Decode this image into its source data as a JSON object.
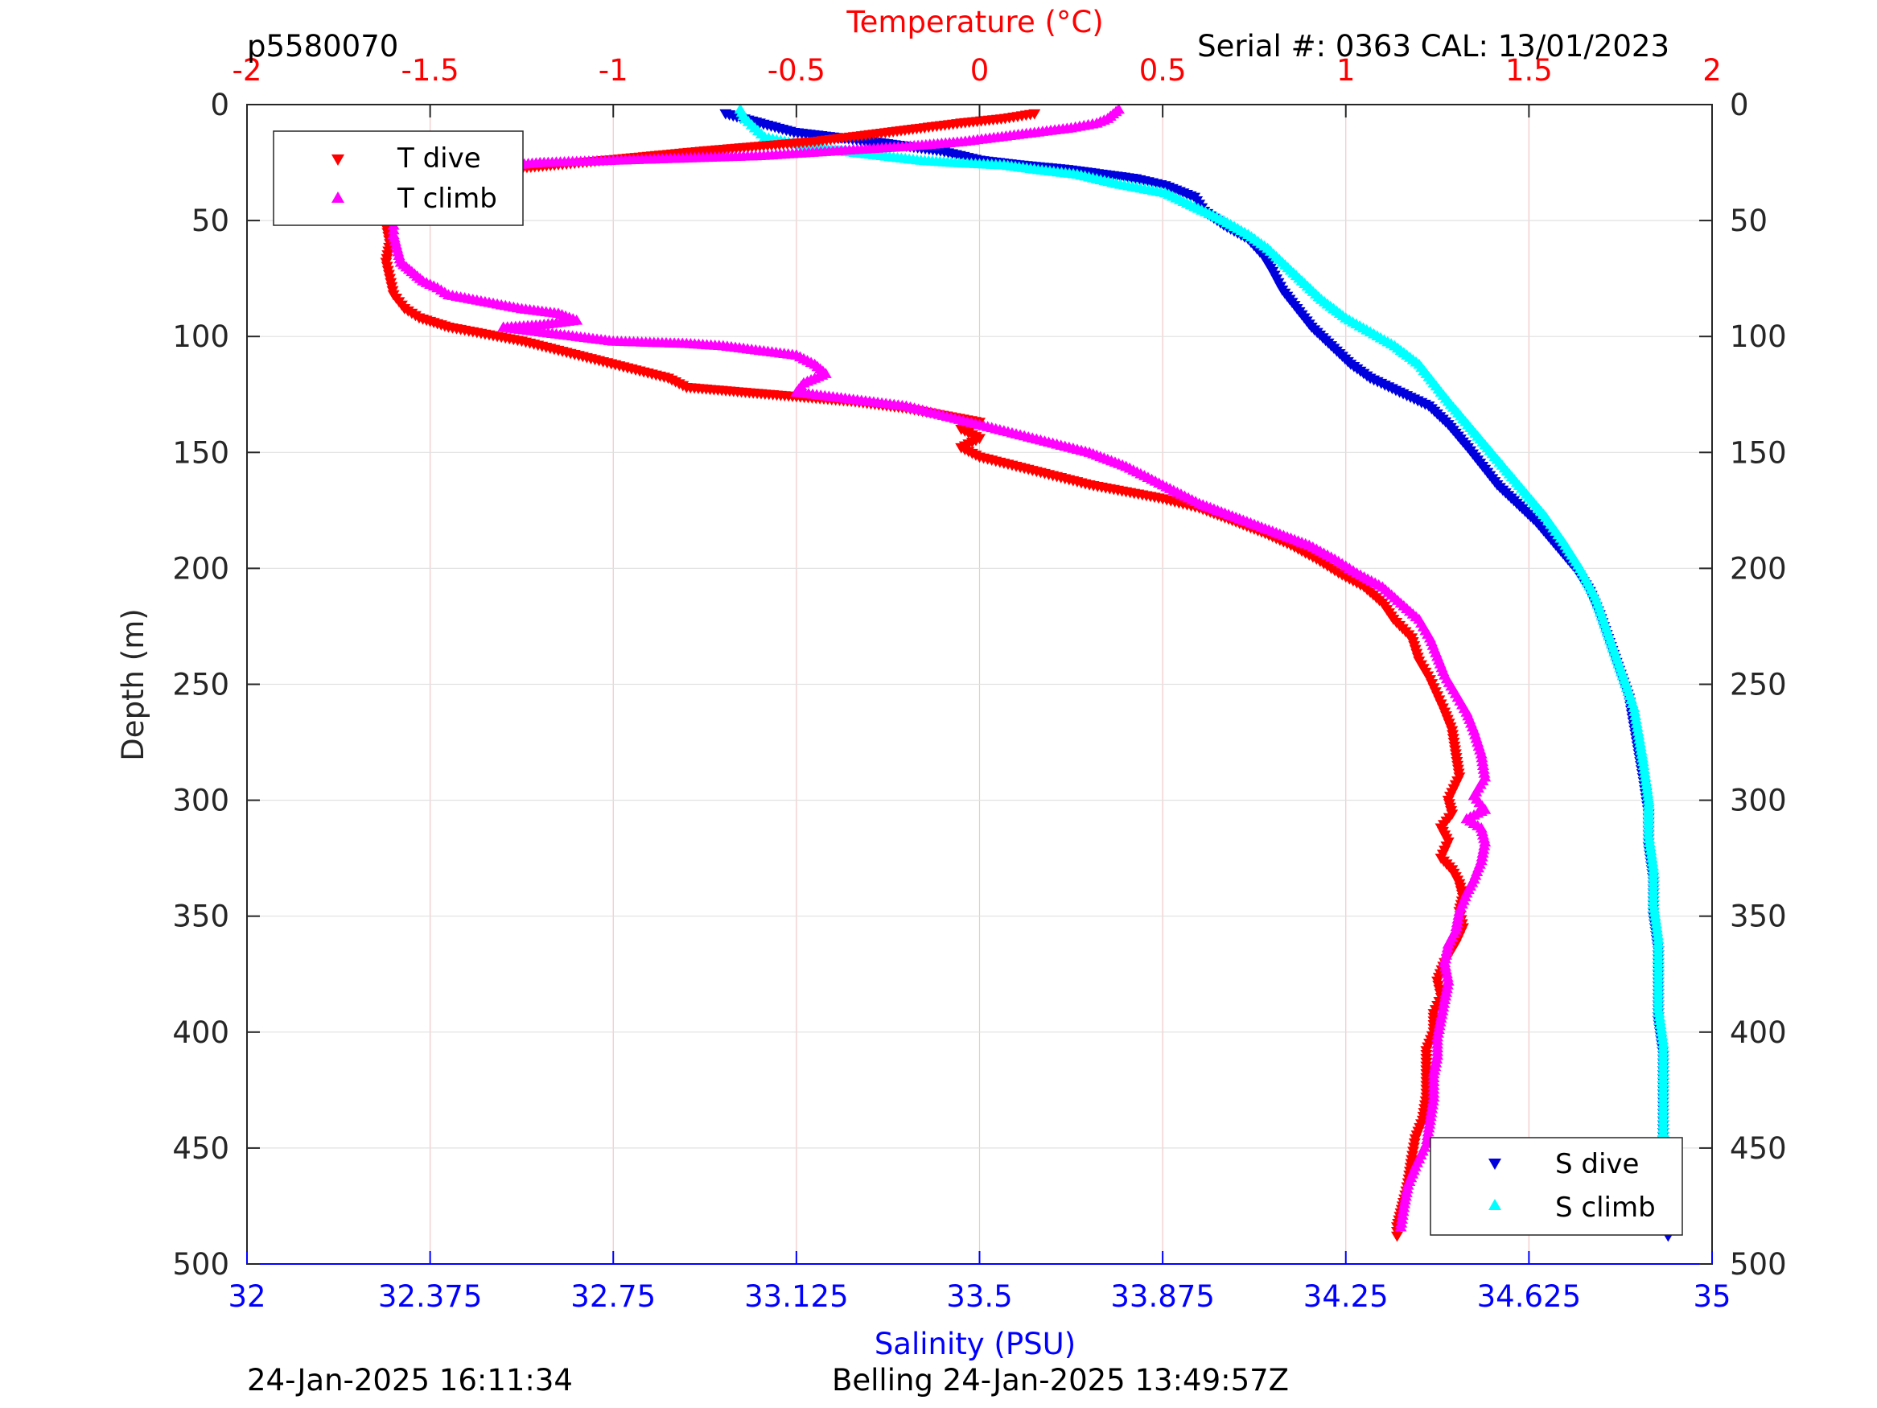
{
  "header": {
    "profile_id": "p5580070",
    "serial_cal": "Serial #: 0363  CAL: 13/01/2023"
  },
  "footer": {
    "left_timestamp": "24-Jan-2025 16:11:34",
    "right_text": "Belling 24-Jan-2025 13:49:57Z"
  },
  "colors": {
    "t_dive": "#ff0000",
    "t_climb": "#ff00ff",
    "s_dive": "#0000dd",
    "s_climb": "#00ffff",
    "temp_axis": "#ff0000",
    "sal_axis": "#0000ff",
    "axis": "#262626"
  },
  "chart_data": {
    "type": "scatter",
    "ylabel": "Depth (m)",
    "ylim": [
      0,
      500
    ],
    "y_reversed": true,
    "y_ticks": [
      "0",
      "50",
      "100",
      "150",
      "200",
      "250",
      "300",
      "350",
      "400",
      "450",
      "500"
    ],
    "temp_axis": {
      "label": "Temperature (°C)",
      "position": "top",
      "lim": [
        -2,
        2
      ],
      "ticks": [
        "-2",
        "-1.5",
        "-1",
        "-0.5",
        "0",
        "0.5",
        "1",
        "1.5",
        "2"
      ]
    },
    "sal_axis": {
      "label": "Salinity (PSU)",
      "position": "bottom",
      "lim": [
        32,
        35
      ],
      "ticks": [
        "32",
        "32.375",
        "32.75",
        "33.125",
        "33.5",
        "33.875",
        "34.25",
        "34.625",
        "35"
      ]
    },
    "grid": true,
    "legend_temperature": {
      "placement": "top-left",
      "entries": [
        "T dive",
        "T climb"
      ]
    },
    "legend_salinity": {
      "placement": "bottom-right",
      "entries": [
        "S dive",
        "S climb"
      ]
    },
    "series": [
      {
        "name": "T dive",
        "axis": "temperature",
        "marker": "triangle-down",
        "points": [
          [
            0.15,
            4
          ],
          [
            0.07,
            6
          ],
          [
            -0.05,
            8
          ],
          [
            -0.15,
            10
          ],
          [
            -0.3,
            13
          ],
          [
            -0.45,
            16
          ],
          [
            -0.6,
            18
          ],
          [
            -0.75,
            20
          ],
          [
            -0.95,
            23
          ],
          [
            -1.15,
            26
          ],
          [
            -1.3,
            28
          ],
          [
            -1.45,
            31
          ],
          [
            -1.58,
            34
          ],
          [
            -1.62,
            38
          ],
          [
            -1.6,
            45
          ],
          [
            -1.62,
            52
          ],
          [
            -1.61,
            60
          ],
          [
            -1.62,
            68
          ],
          [
            -1.61,
            75
          ],
          [
            -1.6,
            82
          ],
          [
            -1.57,
            88
          ],
          [
            -1.53,
            92
          ],
          [
            -1.45,
            96
          ],
          [
            -1.35,
            99
          ],
          [
            -1.25,
            102
          ],
          [
            -1.15,
            106
          ],
          [
            -1.05,
            110
          ],
          [
            -0.95,
            114
          ],
          [
            -0.85,
            118
          ],
          [
            -0.8,
            122
          ],
          [
            -0.65,
            124
          ],
          [
            -0.5,
            126
          ],
          [
            -0.35,
            128
          ],
          [
            -0.2,
            131
          ],
          [
            -0.1,
            134
          ],
          [
            0,
            137
          ],
          [
            -0.05,
            140
          ],
          [
            0,
            144
          ],
          [
            -0.05,
            148
          ],
          [
            0,
            152
          ],
          [
            0.1,
            156
          ],
          [
            0.2,
            160
          ],
          [
            0.3,
            164
          ],
          [
            0.4,
            167
          ],
          [
            0.5,
            170
          ],
          [
            0.6,
            174
          ],
          [
            0.7,
            180
          ],
          [
            0.78,
            185
          ],
          [
            0.85,
            190
          ],
          [
            0.92,
            196
          ],
          [
            0.98,
            202
          ],
          [
            1.05,
            208
          ],
          [
            1.1,
            215
          ],
          [
            1.13,
            222
          ],
          [
            1.18,
            230
          ],
          [
            1.2,
            240
          ],
          [
            1.23,
            248
          ],
          [
            1.25,
            255
          ],
          [
            1.27,
            262
          ],
          [
            1.29,
            270
          ],
          [
            1.3,
            280
          ],
          [
            1.31,
            290
          ],
          [
            1.28,
            300
          ],
          [
            1.29,
            306
          ],
          [
            1.26,
            312
          ],
          [
            1.28,
            318
          ],
          [
            1.26,
            325
          ],
          [
            1.29,
            330
          ],
          [
            1.31,
            336
          ],
          [
            1.32,
            342
          ],
          [
            1.31,
            348
          ],
          [
            1.32,
            355
          ],
          [
            1.3,
            362
          ],
          [
            1.27,
            370
          ],
          [
            1.25,
            378
          ],
          [
            1.26,
            385
          ],
          [
            1.24,
            392
          ],
          [
            1.24,
            400
          ],
          [
            1.22,
            408
          ],
          [
            1.22,
            418
          ],
          [
            1.22,
            428
          ],
          [
            1.21,
            438
          ],
          [
            1.19,
            446
          ],
          [
            1.18,
            455
          ],
          [
            1.17,
            465
          ],
          [
            1.16,
            472
          ],
          [
            1.15,
            478
          ],
          [
            1.14,
            484
          ],
          [
            1.14,
            488
          ]
        ]
      },
      {
        "name": "T climb",
        "axis": "temperature",
        "marker": "triangle-up",
        "points": [
          [
            0.38,
            2
          ],
          [
            0.35,
            6
          ],
          [
            0.32,
            8
          ],
          [
            0.25,
            10
          ],
          [
            0.15,
            12
          ],
          [
            0.05,
            14
          ],
          [
            -0.05,
            16
          ],
          [
            -0.2,
            18
          ],
          [
            -0.4,
            20
          ],
          [
            -0.6,
            22
          ],
          [
            -0.8,
            23
          ],
          [
            -1.0,
            24
          ],
          [
            -1.2,
            25
          ],
          [
            -1.35,
            27
          ],
          [
            -1.48,
            30
          ],
          [
            -1.6,
            33
          ],
          [
            -1.65,
            36
          ],
          [
            -1.67,
            40
          ],
          [
            -1.62,
            44
          ],
          [
            -1.6,
            50
          ],
          [
            -1.6,
            56
          ],
          [
            -1.59,
            62
          ],
          [
            -1.58,
            68
          ],
          [
            -1.55,
            72
          ],
          [
            -1.52,
            76
          ],
          [
            -1.48,
            79
          ],
          [
            -1.45,
            82
          ],
          [
            -1.35,
            85
          ],
          [
            -1.25,
            88
          ],
          [
            -1.15,
            90
          ],
          [
            -1.1,
            93
          ],
          [
            -1.2,
            95
          ],
          [
            -1.3,
            96
          ],
          [
            -1.1,
            100
          ],
          [
            -1.0,
            102
          ],
          [
            -0.8,
            103
          ],
          [
            -0.7,
            104
          ],
          [
            -0.6,
            106
          ],
          [
            -0.5,
            108
          ],
          [
            -0.45,
            112
          ],
          [
            -0.42,
            116
          ],
          [
            -0.48,
            120
          ],
          [
            -0.5,
            124
          ],
          [
            -0.4,
            126
          ],
          [
            -0.3,
            128
          ],
          [
            -0.2,
            130
          ],
          [
            -0.1,
            134
          ],
          [
            0,
            138
          ],
          [
            0.1,
            142
          ],
          [
            0.2,
            146
          ],
          [
            0.3,
            150
          ],
          [
            0.4,
            156
          ],
          [
            0.5,
            164
          ],
          [
            0.6,
            172
          ],
          [
            0.7,
            178
          ],
          [
            0.8,
            184
          ],
          [
            0.9,
            190
          ],
          [
            0.97,
            196
          ],
          [
            1.03,
            202
          ],
          [
            1.1,
            208
          ],
          [
            1.15,
            215
          ],
          [
            1.2,
            222
          ],
          [
            1.23,
            230
          ],
          [
            1.25,
            238
          ],
          [
            1.27,
            246
          ],
          [
            1.3,
            254
          ],
          [
            1.33,
            262
          ],
          [
            1.35,
            270
          ],
          [
            1.37,
            280
          ],
          [
            1.38,
            290
          ],
          [
            1.35,
            298
          ],
          [
            1.38,
            304
          ],
          [
            1.33,
            308
          ],
          [
            1.37,
            312
          ],
          [
            1.38,
            318
          ],
          [
            1.37,
            326
          ],
          [
            1.35,
            334
          ],
          [
            1.33,
            340
          ],
          [
            1.31,
            348
          ],
          [
            1.3,
            356
          ],
          [
            1.28,
            362
          ],
          [
            1.27,
            370
          ],
          [
            1.28,
            378
          ],
          [
            1.27,
            386
          ],
          [
            1.26,
            394
          ],
          [
            1.25,
            402
          ],
          [
            1.25,
            410
          ],
          [
            1.24,
            418
          ],
          [
            1.24,
            428
          ],
          [
            1.23,
            438
          ],
          [
            1.22,
            448
          ],
          [
            1.19,
            458
          ],
          [
            1.17,
            466
          ],
          [
            1.16,
            474
          ],
          [
            1.15,
            484
          ]
        ]
      },
      {
        "name": "S dive",
        "axis": "salinity",
        "marker": "triangle-down",
        "points": [
          [
            32.98,
            4
          ],
          [
            33.05,
            8
          ],
          [
            33.12,
            12
          ],
          [
            33.2,
            14
          ],
          [
            33.28,
            16
          ],
          [
            33.35,
            18
          ],
          [
            33.42,
            20
          ],
          [
            33.5,
            24
          ],
          [
            33.58,
            26
          ],
          [
            33.68,
            28
          ],
          [
            33.75,
            30
          ],
          [
            33.82,
            32
          ],
          [
            33.88,
            35
          ],
          [
            33.94,
            40
          ],
          [
            33.96,
            46
          ],
          [
            34.0,
            52
          ],
          [
            34.05,
            58
          ],
          [
            34.08,
            65
          ],
          [
            34.1,
            72
          ],
          [
            34.12,
            80
          ],
          [
            34.15,
            88
          ],
          [
            34.18,
            96
          ],
          [
            34.22,
            104
          ],
          [
            34.26,
            112
          ],
          [
            34.3,
            118
          ],
          [
            34.36,
            124
          ],
          [
            34.42,
            130
          ],
          [
            34.46,
            138
          ],
          [
            34.5,
            148
          ],
          [
            34.53,
            156
          ],
          [
            34.56,
            164
          ],
          [
            34.6,
            172
          ],
          [
            34.64,
            180
          ],
          [
            34.68,
            190
          ],
          [
            34.72,
            200
          ],
          [
            34.75,
            210
          ],
          [
            34.77,
            220
          ],
          [
            34.79,
            232
          ],
          [
            34.81,
            244
          ],
          [
            34.83,
            256
          ],
          [
            34.84,
            268
          ],
          [
            34.85,
            280
          ],
          [
            34.86,
            292
          ],
          [
            34.87,
            306
          ],
          [
            34.87,
            320
          ],
          [
            34.88,
            335
          ],
          [
            34.88,
            350
          ],
          [
            34.89,
            365
          ],
          [
            34.89,
            380
          ],
          [
            34.89,
            395
          ],
          [
            34.9,
            410
          ],
          [
            34.9,
            425
          ],
          [
            34.9,
            440
          ],
          [
            34.9,
            455
          ],
          [
            34.9,
            470
          ],
          [
            34.9,
            482
          ],
          [
            34.91,
            488
          ]
        ]
      },
      {
        "name": "S climb",
        "axis": "salinity",
        "marker": "triangle-up",
        "points": [
          [
            33.01,
            2
          ],
          [
            33.02,
            6
          ],
          [
            33.04,
            10
          ],
          [
            33.06,
            14
          ],
          [
            33.15,
            18
          ],
          [
            33.22,
            20
          ],
          [
            33.3,
            22
          ],
          [
            33.38,
            24
          ],
          [
            33.45,
            25
          ],
          [
            33.55,
            26
          ],
          [
            33.62,
            28
          ],
          [
            33.7,
            30
          ],
          [
            33.78,
            34
          ],
          [
            33.88,
            38
          ],
          [
            33.94,
            44
          ],
          [
            34.0,
            50
          ],
          [
            34.05,
            56
          ],
          [
            34.09,
            62
          ],
          [
            34.12,
            68
          ],
          [
            34.16,
            76
          ],
          [
            34.2,
            84
          ],
          [
            34.25,
            92
          ],
          [
            34.3,
            98
          ],
          [
            34.35,
            104
          ],
          [
            34.4,
            112
          ],
          [
            34.43,
            120
          ],
          [
            34.46,
            128
          ],
          [
            34.5,
            138
          ],
          [
            34.54,
            148
          ],
          [
            34.58,
            158
          ],
          [
            34.62,
            168
          ],
          [
            34.66,
            178
          ],
          [
            34.7,
            190
          ],
          [
            34.73,
            200
          ],
          [
            34.76,
            212
          ],
          [
            34.78,
            224
          ],
          [
            34.8,
            236
          ],
          [
            34.82,
            248
          ],
          [
            34.84,
            260
          ],
          [
            34.85,
            272
          ],
          [
            34.86,
            285
          ],
          [
            34.87,
            300
          ],
          [
            34.87,
            315
          ],
          [
            34.88,
            330
          ],
          [
            34.88,
            345
          ],
          [
            34.89,
            360
          ],
          [
            34.89,
            375
          ],
          [
            34.89,
            390
          ],
          [
            34.9,
            405
          ],
          [
            34.9,
            420
          ],
          [
            34.9,
            435
          ],
          [
            34.9,
            450
          ],
          [
            34.9,
            465
          ],
          [
            34.9,
            478
          ]
        ]
      }
    ]
  }
}
